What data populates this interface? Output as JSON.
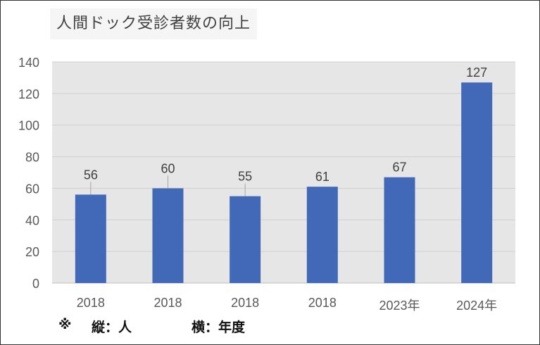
{
  "chart_data": {
    "type": "bar",
    "title": "人間ドック受診者数の向上",
    "categories": [
      "2018",
      "2018",
      "2018",
      "2018",
      "2023年",
      "2024年"
    ],
    "values": [
      56,
      60,
      55,
      61,
      67,
      127
    ],
    "data_labels": [
      "56",
      "60",
      "55",
      "61",
      "67",
      "127"
    ],
    "ylim": [
      0,
      140
    ],
    "yticks": [
      "0",
      "20",
      "40",
      "60",
      "80",
      "100",
      "120",
      "140"
    ],
    "grid": true,
    "bar_color": "#4169b8",
    "plot_background": "#e6e6e6",
    "legend": "none"
  },
  "notes": {
    "mark": "※",
    "vertical": "縦：人",
    "horizontal": "横：年度"
  }
}
